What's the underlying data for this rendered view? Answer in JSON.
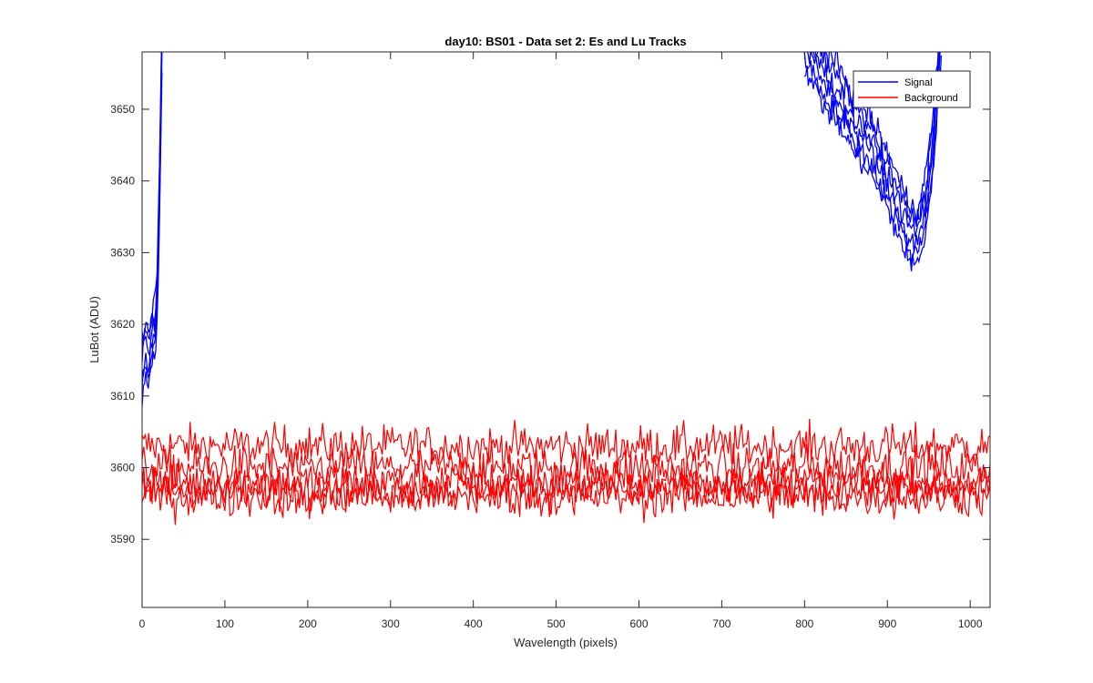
{
  "chart_data": {
    "type": "line",
    "title": "day10: BS01 - Data set 2: Es and Lu Tracks",
    "xlabel": "Wavelength (pixels)",
    "ylabel": "LuBot (ADU)",
    "xlim": [
      0,
      1024
    ],
    "ylim": [
      3580.5,
      3658
    ],
    "xticks": [
      0,
      100,
      200,
      300,
      400,
      500,
      600,
      700,
      800,
      900,
      1000
    ],
    "yticks": [
      3590,
      3600,
      3610,
      3620,
      3630,
      3640,
      3650
    ],
    "grid": false,
    "legend_position": "top-right",
    "legend": [
      {
        "label": "Signal",
        "color": "#0000ff"
      },
      {
        "label": "Background",
        "color": "#ff0000"
      }
    ],
    "series": [
      {
        "name": "Signal",
        "color": "#0000ff",
        "note_range": "visible only near x=0-25 (rising from ~3613 to above 3658) and x=800-965 (dip to ~3627 minimum near x=930)",
        "segments": [
          {
            "x": [
              0,
              4,
              8,
              12,
              16,
              18,
              20,
              22,
              24
            ],
            "y": [
              3614,
              3617,
              3615,
              3618,
              3620,
              3624,
              3632,
              3645,
              3660
            ]
          },
          {
            "x": [
              800,
              820,
              840,
              860,
              880,
              900,
              915,
              925,
              935,
              945,
              955,
              965
            ],
            "y": [
              3660,
              3655,
              3652,
              3648,
              3645,
              3640,
              3636,
              3633,
              3632,
              3636,
              3645,
              3660
            ]
          }
        ]
      },
      {
        "name": "Background",
        "color": "#ff0000",
        "bands": [
          {
            "center": 3603,
            "spread": 3
          },
          {
            "center": 3600,
            "spread": 3
          },
          {
            "center": 3598,
            "spread": 3
          },
          {
            "center": 3597,
            "spread": 3
          },
          {
            "center": 3596,
            "spread": 3
          }
        ]
      }
    ]
  }
}
